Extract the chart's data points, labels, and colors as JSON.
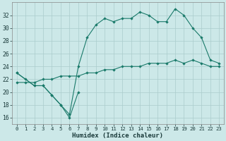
{
  "background_color": "#cce8e8",
  "grid_color": "#aacccc",
  "line_color": "#1a7a6a",
  "xlabel": "Humidex (Indice chaleur)",
  "xlim": [
    -0.5,
    23.5
  ],
  "ylim": [
    15,
    34
  ],
  "yticks": [
    16,
    18,
    20,
    22,
    24,
    26,
    28,
    30,
    32
  ],
  "xticks": [
    0,
    1,
    2,
    3,
    4,
    5,
    6,
    7,
    8,
    9,
    10,
    11,
    12,
    13,
    14,
    15,
    16,
    17,
    18,
    19,
    20,
    21,
    22,
    23
  ],
  "series": [
    {
      "x": [
        0,
        1,
        2,
        3,
        4,
        5,
        6,
        7
      ],
      "y": [
        23,
        22,
        21,
        21,
        19.5,
        18,
        16,
        20
      ]
    },
    {
      "x": [
        0,
        2,
        3,
        4,
        5,
        6,
        7,
        8,
        9,
        10,
        11,
        12,
        13,
        14,
        15,
        16,
        17,
        18,
        19,
        20,
        21,
        22,
        23
      ],
      "y": [
        23,
        21,
        21,
        19.5,
        18,
        16.5,
        24,
        28.5,
        30.5,
        31.5,
        31,
        31.5,
        31.5,
        32.5,
        32,
        31,
        31,
        33,
        32,
        30,
        28.5,
        25,
        24.5
      ]
    },
    {
      "x": [
        0,
        1,
        2,
        3,
        4,
        5,
        6,
        7,
        8,
        9,
        10,
        11,
        12,
        13,
        14,
        15,
        16,
        17,
        18,
        19,
        20,
        21,
        22,
        23
      ],
      "y": [
        21.5,
        21.5,
        21.5,
        22,
        22,
        22.5,
        22.5,
        22.5,
        23,
        23,
        23.5,
        23.5,
        24,
        24,
        24,
        24.5,
        24.5,
        24.5,
        25,
        24.5,
        25,
        24.5,
        24,
        24
      ]
    }
  ]
}
